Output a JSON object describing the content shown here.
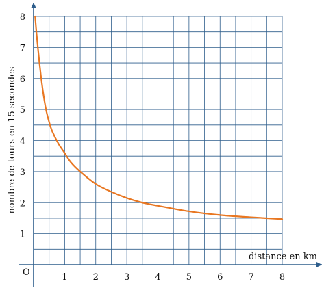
{
  "chart_data": {
    "type": "line",
    "title": "",
    "xlabel": "distance en km",
    "ylabel": "nombre de tours en 15 secondes",
    "origin_label": "O",
    "xlim": [
      0,
      8
    ],
    "ylim": [
      0,
      8
    ],
    "x_ticks": [
      "1",
      "2",
      "3",
      "4",
      "5",
      "6",
      "7",
      "8"
    ],
    "y_ticks": [
      "1",
      "2",
      "3",
      "4",
      "5",
      "6",
      "7",
      "8"
    ],
    "grid": true,
    "grid_step_x": 0.5,
    "grid_step_y": 0.5,
    "series": [
      {
        "color": "#e87722",
        "x": [
          0.05,
          0.1,
          0.2,
          0.3,
          0.4,
          0.5,
          0.6,
          0.8,
          1.0,
          1.2,
          1.5,
          2.0,
          2.5,
          3.0,
          3.5,
          4.0,
          5.0,
          6.0,
          7.0,
          8.0
        ],
        "y": [
          8.0,
          7.4,
          6.4,
          5.6,
          5.0,
          4.6,
          4.3,
          3.9,
          3.6,
          3.3,
          3.0,
          2.6,
          2.35,
          2.15,
          2.0,
          1.9,
          1.72,
          1.6,
          1.53,
          1.47
        ]
      }
    ],
    "colors": {
      "grid": "#2e5e8c",
      "axis": "#2e5e8c",
      "curve": "#e87722"
    }
  }
}
